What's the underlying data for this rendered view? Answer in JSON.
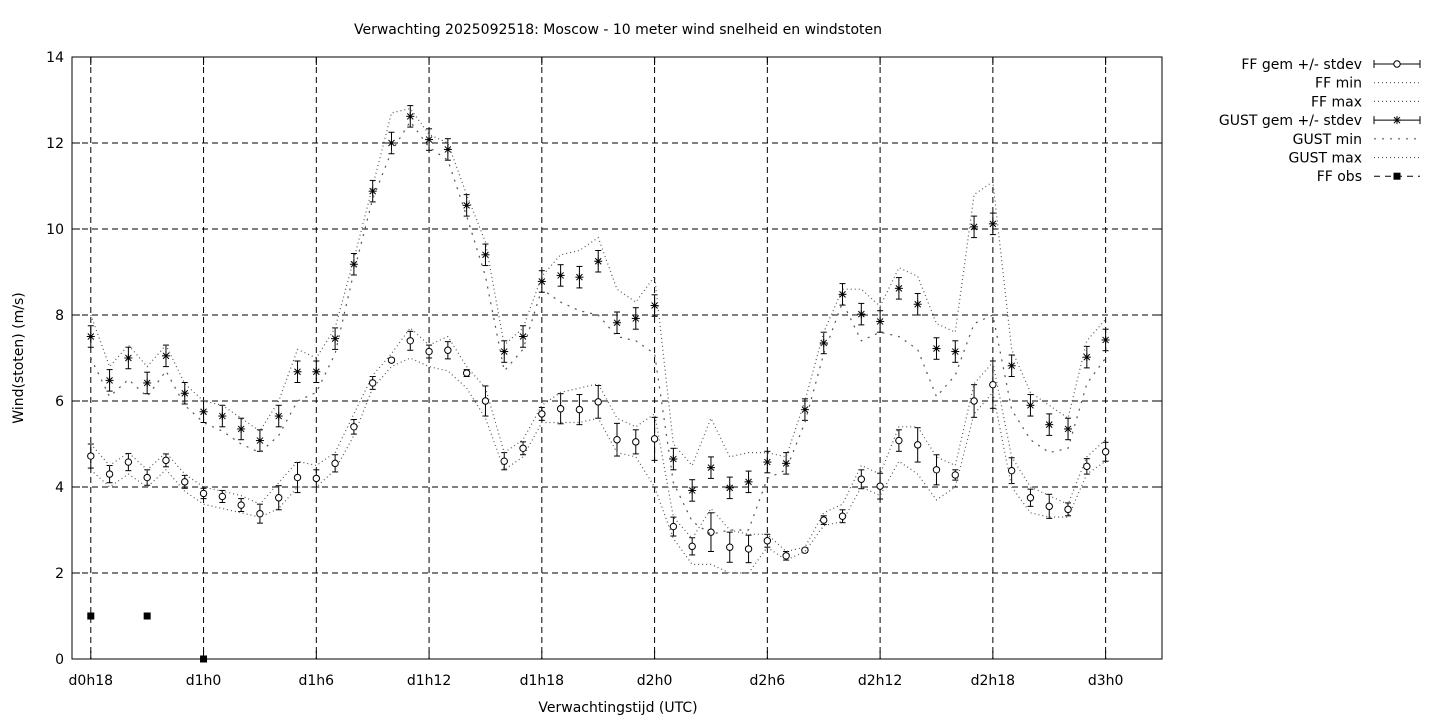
{
  "chart_data": {
    "type": "line",
    "title": "Verwachting 2025092518: Moscow - 10 meter wind snelheid en windstoten",
    "xlabel": "Verwachtingstijd (UTC)",
    "ylabel": "Wind(stoten) (m/s)",
    "ylim": [
      0,
      14
    ],
    "yticks": [
      0,
      2,
      4,
      6,
      8,
      10,
      12,
      14
    ],
    "xlim": [
      -1,
      57
    ],
    "xticks": [
      {
        "x": 0,
        "label": "d0h18"
      },
      {
        "x": 6,
        "label": "d1h0"
      },
      {
        "x": 12,
        "label": "d1h6"
      },
      {
        "x": 18,
        "label": "d1h12"
      },
      {
        "x": 24,
        "label": "d1h18"
      },
      {
        "x": 30,
        "label": "d2h0"
      },
      {
        "x": 36,
        "label": "d2h6"
      },
      {
        "x": 42,
        "label": "d2h12"
      },
      {
        "x": 48,
        "label": "d2h18"
      },
      {
        "x": 54,
        "label": "d3h0"
      }
    ],
    "grid": true,
    "legend_position": "outside-right",
    "x": [
      0,
      1,
      2,
      3,
      4,
      5,
      6,
      7,
      8,
      9,
      10,
      11,
      12,
      13,
      14,
      15,
      16,
      17,
      18,
      19,
      20,
      21,
      22,
      23,
      24,
      25,
      26,
      27,
      28,
      29,
      30,
      31,
      32,
      33,
      34,
      35,
      36,
      37,
      38,
      39,
      40,
      41,
      42,
      43,
      44,
      45,
      46,
      47,
      48,
      49,
      50,
      51,
      52,
      53,
      54
    ],
    "series": [
      {
        "name": "FF gem +/- stdev",
        "style": "errorbar-circle",
        "values": [
          4.72,
          4.3,
          4.58,
          4.22,
          4.62,
          4.12,
          3.85,
          3.78,
          3.58,
          3.38,
          3.75,
          4.22,
          4.2,
          4.55,
          5.4,
          6.42,
          6.95,
          7.4,
          7.15,
          7.18,
          6.65,
          6.0,
          4.6,
          4.9,
          5.7,
          5.82,
          5.8,
          5.98,
          5.1,
          5.05,
          5.12,
          3.08,
          2.62,
          2.95,
          2.6,
          2.56,
          2.75,
          2.4,
          2.53,
          3.23,
          3.32,
          4.18,
          4.02,
          5.08,
          4.98,
          4.4,
          4.28,
          6.0,
          6.38,
          4.38,
          3.75,
          3.55,
          3.48,
          4.48,
          4.82
        ],
        "stdev": [
          0.28,
          0.2,
          0.2,
          0.18,
          0.15,
          0.15,
          0.12,
          0.14,
          0.15,
          0.22,
          0.28,
          0.35,
          0.2,
          0.2,
          0.17,
          0.15,
          0.05,
          0.22,
          0.15,
          0.2,
          0.08,
          0.35,
          0.2,
          0.15,
          0.15,
          0.35,
          0.35,
          0.38,
          0.38,
          0.28,
          0.5,
          0.22,
          0.2,
          0.45,
          0.35,
          0.32,
          0.15,
          0.1,
          0.05,
          0.1,
          0.15,
          0.22,
          0.3,
          0.25,
          0.4,
          0.35,
          0.12,
          0.38,
          0.55,
          0.3,
          0.2,
          0.28,
          0.15,
          0.18,
          0.22
        ]
      },
      {
        "name": "FF min",
        "style": "dotted",
        "values": [
          4.4,
          4.0,
          4.3,
          4.0,
          4.4,
          3.9,
          3.6,
          3.5,
          3.4,
          3.3,
          3.5,
          4.0,
          4.0,
          4.4,
          5.2,
          6.3,
          6.8,
          7.0,
          6.8,
          6.7,
          6.3,
          5.6,
          4.4,
          4.7,
          5.5,
          5.5,
          5.5,
          5.6,
          4.8,
          4.7,
          4.0,
          2.8,
          2.2,
          2.2,
          2.0,
          2.0,
          2.6,
          2.3,
          2.5,
          3.1,
          3.2,
          4.0,
          3.8,
          4.6,
          4.3,
          3.7,
          4.0,
          5.7,
          6.2,
          4.0,
          3.4,
          3.3,
          3.3,
          4.3,
          4.6
        ]
      },
      {
        "name": "FF max",
        "style": "dotted",
        "values": [
          5.0,
          4.5,
          4.8,
          4.4,
          4.8,
          4.3,
          4.0,
          3.9,
          3.8,
          3.6,
          4.1,
          4.6,
          4.5,
          4.8,
          5.7,
          6.6,
          7.1,
          7.7,
          7.3,
          7.5,
          6.8,
          6.3,
          4.8,
          5.1,
          5.9,
          6.2,
          6.3,
          6.4,
          5.6,
          5.4,
          5.7,
          3.3,
          2.8,
          3.5,
          3.0,
          2.9,
          2.9,
          2.5,
          2.6,
          3.4,
          3.6,
          4.5,
          4.3,
          5.4,
          5.4,
          4.7,
          4.5,
          6.4,
          6.9,
          4.7,
          4.0,
          3.8,
          3.6,
          4.7,
          5.1
        ]
      },
      {
        "name": "GUST gem +/- stdev",
        "style": "errorbar-star",
        "values": [
          7.5,
          6.48,
          7.0,
          6.42,
          7.05,
          6.18,
          5.75,
          5.65,
          5.35,
          5.08,
          5.65,
          6.68,
          6.68,
          7.45,
          9.18,
          10.88,
          12.0,
          12.62,
          12.08,
          11.85,
          10.55,
          9.4,
          7.15,
          7.5,
          8.78,
          8.92,
          8.88,
          9.25,
          7.82,
          7.92,
          8.22,
          4.65,
          3.92,
          4.45,
          3.98,
          4.12,
          4.58,
          4.55,
          5.8,
          7.35,
          8.48,
          8.02,
          7.85,
          8.62,
          8.25,
          7.22,
          7.15,
          10.05,
          10.12,
          6.82,
          5.9,
          5.45,
          5.35,
          7.02,
          7.42
        ]
      },
      {
        "name": "GUST min",
        "style": "dotted",
        "values": [
          7.0,
          6.1,
          6.5,
          6.1,
          6.7,
          5.9,
          5.5,
          5.3,
          5.0,
          4.8,
          5.2,
          6.0,
          6.2,
          7.1,
          9.0,
          10.7,
          11.8,
          12.5,
          11.9,
          11.6,
          10.3,
          8.9,
          6.7,
          7.2,
          8.6,
          8.3,
          8.1,
          8.0,
          7.5,
          7.4,
          7.1,
          4.1,
          3.2,
          2.9,
          3.0,
          3.0,
          4.2,
          4.4,
          5.5,
          7.1,
          8.3,
          7.4,
          7.6,
          7.5,
          7.2,
          6.1,
          6.6,
          7.8,
          8.0,
          5.8,
          5.1,
          4.8,
          4.9,
          6.4,
          7.0
        ]
      },
      {
        "name": "GUST max",
        "style": "dotted",
        "values": [
          8.0,
          6.8,
          7.3,
          6.8,
          7.3,
          6.4,
          6.0,
          5.9,
          5.6,
          5.3,
          6.0,
          7.2,
          7.0,
          7.7,
          9.3,
          11.0,
          12.7,
          12.8,
          12.2,
          12.0,
          10.8,
          9.7,
          7.3,
          7.7,
          8.9,
          9.4,
          9.5,
          9.8,
          8.6,
          8.3,
          8.9,
          5.0,
          4.5,
          5.6,
          4.7,
          4.8,
          4.8,
          4.7,
          6.0,
          7.6,
          8.6,
          8.6,
          8.2,
          9.1,
          8.9,
          7.8,
          7.6,
          10.8,
          11.1,
          7.2,
          6.2,
          5.9,
          5.6,
          7.4,
          7.9
        ]
      },
      {
        "name": "FF obs",
        "style": "square",
        "points": [
          {
            "x": 0,
            "y": 1
          },
          {
            "x": 3,
            "y": 1
          },
          {
            "x": 6,
            "y": 0
          }
        ]
      }
    ]
  }
}
